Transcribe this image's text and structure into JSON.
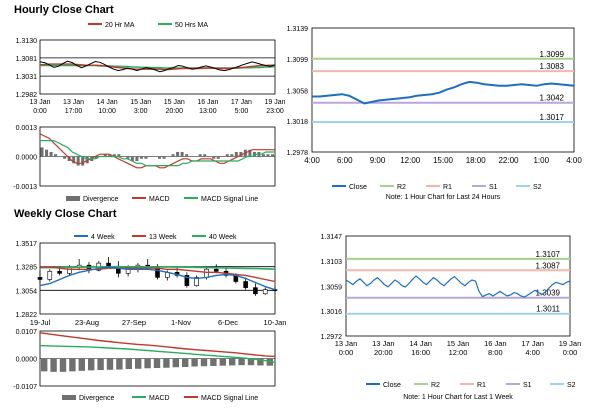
{
  "sections": {
    "hourly_title": "Hourly Close Chart",
    "weekly_title": "Weekly Close Chart"
  },
  "colors": {
    "close": "#1f6fbf",
    "ma_short": "#c0392b",
    "ma_long": "#27ae60",
    "r2": "#a8d08d",
    "r1": "#f4b6b0",
    "s1": "#b9a7d9",
    "s2": "#9fd3ea",
    "divergence": "#707070",
    "macd": "#c0392b",
    "signal": "#27ae60",
    "close_line_bottom": "#1f6fbf"
  },
  "chart_data": [
    {
      "id": "hourly-price",
      "type": "line",
      "legend": [
        "20 Hr MA",
        "50 Hrs MA"
      ],
      "x_ticks": [
        "13 Jan 0:00",
        "13 Jan 17:00",
        "14 Jan 10:00",
        "15 Jan 3:00",
        "15 Jan 20:00",
        "16 Jan 13:00",
        "17 Jan 5:00",
        "19 Jan 23:00"
      ],
      "y_ticks": [
        "1.3130",
        "1.3081",
        "1.3031",
        "1.2982"
      ],
      "ylim": [
        1.2982,
        1.313
      ],
      "hlines": [
        1.3081,
        1.3031
      ],
      "close": [
        1.307,
        1.3068,
        1.3062,
        1.3055,
        1.3058,
        1.3066,
        1.3072,
        1.3068,
        1.306,
        1.3054,
        1.3059,
        1.3065,
        1.3071,
        1.3069,
        1.3063,
        1.3056,
        1.305,
        1.3046,
        1.3049,
        1.3053,
        1.305,
        1.3046,
        1.305,
        1.3054,
        1.3052,
        1.3048,
        1.3043,
        1.3046,
        1.3051,
        1.3055,
        1.306,
        1.3058,
        1.3054,
        1.305,
        1.3052,
        1.3056,
        1.3059,
        1.3056,
        1.3052,
        1.3048,
        1.3046,
        1.3049,
        1.3053,
        1.3057,
        1.3062,
        1.3066,
        1.307,
        1.3067,
        1.3063,
        1.306,
        1.3058,
        1.3062
      ],
      "ma20": [
        1.3062,
        1.3063,
        1.3064,
        1.3064,
        1.3064,
        1.3064,
        1.3064,
        1.3064,
        1.3063,
        1.3062,
        1.3061,
        1.3061,
        1.3061,
        1.306,
        1.3059,
        1.3057,
        1.3056,
        1.3054,
        1.3053,
        1.3052,
        1.3051,
        1.305,
        1.305,
        1.305,
        1.305,
        1.305,
        1.305,
        1.3049,
        1.3049,
        1.305,
        1.3051,
        1.3052,
        1.3052,
        1.3052,
        1.3052,
        1.3052,
        1.3053,
        1.3053,
        1.3053,
        1.3052,
        1.3052,
        1.3052,
        1.3053,
        1.3054,
        1.3055,
        1.3056,
        1.3058,
        1.3059,
        1.306,
        1.306,
        1.3061,
        1.3061
      ],
      "ma50": [
        1.306,
        1.306,
        1.306,
        1.306,
        1.306,
        1.306,
        1.306,
        1.306,
        1.306,
        1.306,
        1.306,
        1.306,
        1.306,
        1.3059,
        1.3059,
        1.3059,
        1.3058,
        1.3058,
        1.3057,
        1.3057,
        1.3056,
        1.3056,
        1.3055,
        1.3055,
        1.3054,
        1.3054,
        1.3054,
        1.3053,
        1.3053,
        1.3053,
        1.3053,
        1.3053,
        1.3053,
        1.3053,
        1.3053,
        1.3053,
        1.3053,
        1.3053,
        1.3053,
        1.3053,
        1.3053,
        1.3053,
        1.3053,
        1.3053,
        1.3054,
        1.3054,
        1.3054,
        1.3055,
        1.3055,
        1.3056,
        1.3056,
        1.3057
      ]
    },
    {
      "id": "hourly-macd",
      "type": "bar",
      "y_ticks": [
        "0.0013",
        "0.0000",
        "-0.0013"
      ],
      "ylim": [
        -0.0013,
        0.0013
      ],
      "legend": [
        "Divergence",
        "MACD",
        "MACD Signal Line"
      ],
      "divergence": [
        0.0004,
        0.0003,
        0.0002,
        0.0001,
        0.0,
        -0.0001,
        -0.0002,
        -0.0003,
        -0.0004,
        -0.0004,
        -0.0003,
        -0.0002,
        -0.0001,
        0.0,
        0.0001,
        0.0001,
        0.0001,
        0.0001,
        0.0,
        -0.0001,
        -0.0002,
        -0.0002,
        -0.0001,
        -0.0001,
        0.0,
        0.0,
        -0.0001,
        -0.0001,
        0.0,
        0.0001,
        0.0002,
        0.0002,
        0.0001,
        0.0,
        0.0,
        0.0001,
        0.0001,
        0.0,
        -0.0001,
        -0.0001,
        0.0,
        0.0001,
        0.0001,
        0.0002,
        0.0002,
        0.0003,
        0.0003,
        0.0002,
        0.0002,
        0.0001,
        0.0001,
        0.0001
      ],
      "macd": [
        0.001,
        0.0009,
        0.0008,
        0.0006,
        0.0004,
        0.0002,
        0.0,
        -0.0002,
        -0.0003,
        -0.0003,
        -0.0002,
        -0.0001,
        0.0,
        0.0001,
        0.0001,
        0.0001,
        0.0,
        -0.0001,
        -0.0002,
        -0.0003,
        -0.0004,
        -0.0005,
        -0.0005,
        -0.0004,
        -0.0004,
        -0.0004,
        -0.0005,
        -0.0005,
        -0.0004,
        -0.0003,
        -0.0002,
        -0.0001,
        -0.0001,
        -0.0002,
        -0.0002,
        -0.0001,
        -0.0001,
        -0.0001,
        -0.0002,
        -0.0003,
        -0.0003,
        -0.0002,
        -0.0001,
        0.0,
        0.0001,
        0.0002,
        0.0003,
        0.0003,
        0.0003,
        0.0003,
        0.0003,
        0.0003
      ],
      "signal": [
        0.0007,
        0.0007,
        0.0007,
        0.0007,
        0.0006,
        0.0005,
        0.0004,
        0.0002,
        0.0001,
        0.0,
        -0.0001,
        -0.0001,
        -0.0001,
        0.0,
        0.0,
        0.0,
        0.0,
        0.0,
        -0.0001,
        -0.0001,
        -0.0002,
        -0.0003,
        -0.0003,
        -0.0004,
        -0.0004,
        -0.0004,
        -0.0004,
        -0.0004,
        -0.0004,
        -0.0004,
        -0.0004,
        -0.0003,
        -0.0003,
        -0.0002,
        -0.0002,
        -0.0002,
        -0.0002,
        -0.0002,
        -0.0002,
        -0.0002,
        -0.0002,
        -0.0002,
        -0.0002,
        -0.0002,
        -0.0001,
        0.0,
        0.0,
        0.0001,
        0.0001,
        0.0002,
        0.0002,
        0.0002
      ]
    },
    {
      "id": "hourly-pivot",
      "type": "line",
      "ylim": [
        1.2978,
        1.3139
      ],
      "y_ticks": [
        "1.3139",
        "1.3099",
        "1.3058",
        "1.3018",
        "1.2978"
      ],
      "x_ticks": [
        "4:00",
        "6:00",
        "9:00",
        "12:00",
        "15:00",
        "18:00",
        "22:00",
        "1:00",
        "4:00"
      ],
      "levels": {
        "R2": 1.3099,
        "R1": 1.3083,
        "S1": 1.3042,
        "S2": 1.3017
      },
      "level_labels": {
        "R2": "1.3099",
        "R1": "1.3083",
        "S1": "1.3042",
        "S2": "1.3017"
      },
      "close": [
        1.305,
        1.305,
        1.3051,
        1.3052,
        1.3053,
        1.3051,
        1.3046,
        1.3041,
        1.3043,
        1.3045,
        1.3046,
        1.3047,
        1.3048,
        1.3049,
        1.3051,
        1.3052,
        1.3053,
        1.3055,
        1.3059,
        1.3062,
        1.3066,
        1.3069,
        1.3068,
        1.3066,
        1.3065,
        1.3064,
        1.3064,
        1.3065,
        1.3066,
        1.3065,
        1.3064,
        1.3066,
        1.3067,
        1.3066,
        1.3065,
        1.3064
      ],
      "legend": [
        "Close",
        "R2",
        "R1",
        "S1",
        "S2"
      ],
      "note": "Note: 1 Hour Chart for Last 24 Hours"
    },
    {
      "id": "weekly-price",
      "type": "line",
      "legend": [
        "4 Week",
        "13 Week",
        "40 Week"
      ],
      "x_ticks": [
        "19-Jul",
        "23-Aug",
        "27-Sep",
        "1-Nov",
        "6-Dec",
        "10-Jan"
      ],
      "y_ticks": [
        "1.3517",
        "1.3285",
        "1.3054",
        "1.2822"
      ],
      "ylim": [
        1.2822,
        1.3517
      ],
      "hlines": [
        1.3285,
        1.3054
      ],
      "ohlc": [
        [
          1.318,
          1.325,
          1.312,
          1.316
        ],
        [
          1.316,
          1.326,
          1.314,
          1.324
        ],
        [
          1.324,
          1.329,
          1.32,
          1.322
        ],
        [
          1.322,
          1.33,
          1.32,
          1.328
        ],
        [
          1.328,
          1.336,
          1.325,
          1.33
        ],
        [
          1.33,
          1.333,
          1.322,
          1.325
        ],
        [
          1.325,
          1.334,
          1.324,
          1.332
        ],
        [
          1.332,
          1.338,
          1.327,
          1.329
        ],
        [
          1.329,
          1.334,
          1.318,
          1.322
        ],
        [
          1.322,
          1.33,
          1.319,
          1.327
        ],
        [
          1.327,
          1.332,
          1.323,
          1.33
        ],
        [
          1.33,
          1.336,
          1.326,
          1.328
        ],
        [
          1.328,
          1.331,
          1.316,
          1.318
        ],
        [
          1.318,
          1.325,
          1.315,
          1.323
        ],
        [
          1.323,
          1.328,
          1.318,
          1.32
        ],
        [
          1.32,
          1.323,
          1.308,
          1.31
        ],
        [
          1.31,
          1.32,
          1.309,
          1.318
        ],
        [
          1.318,
          1.329,
          1.316,
          1.326
        ],
        [
          1.326,
          1.331,
          1.322,
          1.324
        ],
        [
          1.324,
          1.328,
          1.318,
          1.32
        ],
        [
          1.32,
          1.322,
          1.312,
          1.314
        ],
        [
          1.314,
          1.318,
          1.306,
          1.308
        ],
        [
          1.308,
          1.312,
          1.3,
          1.302
        ],
        [
          1.302,
          1.308,
          1.301,
          1.306
        ],
        [
          1.306,
          1.309,
          1.303,
          1.305
        ]
      ],
      "w4": [
        1.31,
        1.312,
        1.316,
        1.32,
        1.323,
        1.325,
        1.327,
        1.328,
        1.327,
        1.326,
        1.326,
        1.326,
        1.325,
        1.323,
        1.321,
        1.318,
        1.317,
        1.318,
        1.32,
        1.321,
        1.32,
        1.317,
        1.313,
        1.309,
        1.306
      ],
      "w13": [
        1.328,
        1.328,
        1.327,
        1.326,
        1.326,
        1.326,
        1.326,
        1.327,
        1.327,
        1.327,
        1.327,
        1.327,
        1.327,
        1.326,
        1.326,
        1.325,
        1.324,
        1.323,
        1.323,
        1.322,
        1.321,
        1.32,
        1.318,
        1.316,
        1.314
      ],
      "w40": [
        1.3275,
        1.3276,
        1.3278,
        1.3279,
        1.328,
        1.3281,
        1.3282,
        1.3283,
        1.3284,
        1.3284,
        1.3284,
        1.3284,
        1.3283,
        1.3282,
        1.3281,
        1.328,
        1.3278,
        1.3276,
        1.3274,
        1.3272,
        1.327,
        1.3268,
        1.3266,
        1.3264,
        1.3262
      ]
    },
    {
      "id": "weekly-macd",
      "type": "bar",
      "y_ticks": [
        "0.0107",
        "0.0000",
        "-0.0107"
      ],
      "ylim": [
        -0.0107,
        0.0107
      ],
      "legend": [
        "Divergence",
        "MACD",
        "MACD Signal Line"
      ],
      "divergence": [
        -0.005,
        -0.0052,
        -0.0052,
        -0.005,
        -0.0048,
        -0.0046,
        -0.0045,
        -0.0044,
        -0.0043,
        -0.0041,
        -0.004,
        -0.0038,
        -0.0037,
        -0.0036,
        -0.0034,
        -0.0033,
        -0.0031,
        -0.003,
        -0.0029,
        -0.0028,
        -0.0027,
        -0.0026,
        -0.0026,
        -0.0027,
        -0.0028
      ],
      "macd": [
        0.01,
        0.0095,
        0.009,
        0.0085,
        0.008,
        0.0075,
        0.007,
        0.0066,
        0.0062,
        0.0058,
        0.0055,
        0.0052,
        0.0049,
        0.0045,
        0.0041,
        0.0037,
        0.0034,
        0.0031,
        0.0028,
        0.0025,
        0.0022,
        0.0018,
        0.0014,
        0.001,
        0.0008
      ],
      "signal": [
        0.005,
        0.0049,
        0.0048,
        0.0047,
        0.0046,
        0.0045,
        0.0043,
        0.0041,
        0.0039,
        0.0037,
        0.0034,
        0.0031,
        0.0028,
        0.0025,
        0.0022,
        0.0019,
        0.0016,
        0.0013,
        0.001,
        0.0007,
        0.0004,
        0.0001,
        -0.0003,
        -0.0008,
        -0.0015
      ]
    },
    {
      "id": "weekly-pivot",
      "type": "line",
      "ylim": [
        1.2972,
        1.3147
      ],
      "y_ticks": [
        "1.3147",
        "1.3103",
        "1.3059",
        "1.3016",
        "1.2972"
      ],
      "x_ticks": [
        "13 Jan 0:00",
        "13 Jan 20:00",
        "14 Jan 16:00",
        "15 Jan 12:00",
        "16 Jan 8:00",
        "17 Jan 4:00",
        "19 Jan 0:00"
      ],
      "levels": {
        "R2": 1.3107,
        "R1": 1.3087,
        "S1": 1.3039,
        "S2": 1.3011
      },
      "level_labels": {
        "R2": "1.3107",
        "R1": "1.3087",
        "S1": "1.3039",
        "S2": "1.3011"
      },
      "close": [
        1.307,
        1.3066,
        1.3062,
        1.3068,
        1.3072,
        1.3066,
        1.306,
        1.3064,
        1.307,
        1.3074,
        1.3068,
        1.3062,
        1.3058,
        1.3064,
        1.307,
        1.3066,
        1.306,
        1.3058,
        1.3064,
        1.3071,
        1.3077,
        1.3072,
        1.3066,
        1.3062,
        1.3068,
        1.3074,
        1.307,
        1.3064,
        1.306,
        1.3066,
        1.3072,
        1.3076,
        1.307,
        1.3064,
        1.306,
        1.3066,
        1.307,
        1.3068,
        1.305,
        1.3041,
        1.3044,
        1.3046,
        1.3042,
        1.3046,
        1.305,
        1.3046,
        1.3042,
        1.3044,
        1.3048,
        1.3046,
        1.3042,
        1.304,
        1.3044,
        1.3048,
        1.3052,
        1.3048,
        1.3045,
        1.3049,
        1.3056,
        1.3062,
        1.3066,
        1.3064,
        1.3062,
        1.3066,
        1.3068
      ],
      "legend": [
        "Close",
        "R2",
        "R1",
        "S1",
        "S2"
      ],
      "note": "Note: 1 Hour Chart for Last 1 Week"
    }
  ]
}
